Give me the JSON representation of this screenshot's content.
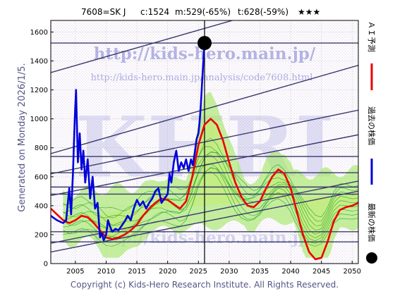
{
  "header": {
    "code": "7608=SK J",
    "c": "c:1524",
    "m": "m:529(-65%)",
    "t": "t:628(-59%)",
    "stars": "★★★"
  },
  "watermark": {
    "url1": "http://kids-hero.main.jp/",
    "url2": "http://kids-hero.main.jp/analysis/code7608.html",
    "big": "KHRI"
  },
  "generated": "Generated on Monday 2026/1/5.",
  "copyright": "Copyright (c) Kids-Hero Research Institute. All Rights Reserved.",
  "legend": {
    "ai": "ＡＩ予測",
    "past": "過去の株価",
    "latest": "最新の株価"
  },
  "colors": {
    "past": "#0000dd",
    "ai": "#ee0000",
    "band_fill": "#a6e86a",
    "band_line": "#2fa82f",
    "channel": "#3a3a6e",
    "yellow": "#fff3a6",
    "grid": "#b9b9b9"
  },
  "chart_data": {
    "type": "line",
    "xlim": [
      2001,
      2051
    ],
    "ylim": [
      0,
      1680
    ],
    "xticks": [
      "2005",
      "2010",
      "2015",
      "2020",
      "2025",
      "2030",
      "2035",
      "2040",
      "2045",
      "2050"
    ],
    "yticks": [
      "0",
      "200",
      "400",
      "600",
      "800",
      "1000",
      "1200",
      "1400",
      "1600"
    ],
    "current_point": {
      "x": 2026.0,
      "y": 1524
    },
    "hlines": [
      1524,
      740,
      628,
      529,
      480,
      220,
      150
    ],
    "vline_x": 2026.0,
    "channels": [
      {
        "x": [
          2001,
          2051
        ],
        "y": [
          1320,
          1930
        ]
      },
      {
        "x": [
          2001,
          2051
        ],
        "y": [
          760,
          1370
        ]
      },
      {
        "x": [
          2001,
          2051
        ],
        "y": [
          620,
          1060
        ]
      },
      {
        "x": [
          2001,
          2051
        ],
        "y": [
          470,
          890
        ]
      },
      {
        "x": [
          2001,
          2051
        ],
        "y": [
          140,
          570
        ]
      },
      {
        "x": [
          2001,
          2051
        ],
        "y": [
          80,
          500
        ]
      }
    ],
    "series": [
      {
        "name": "過去の株価",
        "x": [
          2001.0,
          2002.0,
          2003.0,
          2003.5,
          2004.0,
          2004.3,
          2004.6,
          2004.9,
          2005.1,
          2005.4,
          2005.7,
          2006.0,
          2006.3,
          2006.6,
          2007.0,
          2007.4,
          2007.8,
          2008.2,
          2008.6,
          2009.0,
          2009.3,
          2009.6,
          2010.0,
          2010.3,
          2010.6,
          2011.0,
          2011.5,
          2012.0,
          2012.5,
          2013.0,
          2013.5,
          2014.0,
          2014.5,
          2015.0,
          2015.5,
          2016.0,
          2016.5,
          2017.0,
          2017.5,
          2018.0,
          2018.5,
          2019.0,
          2019.5,
          2020.0,
          2020.3,
          2020.6,
          2021.0,
          2021.4,
          2021.8,
          2022.2,
          2022.6,
          2023.0,
          2023.4,
          2023.8,
          2024.1,
          2024.4,
          2024.7,
          2025.0,
          2025.2,
          2025.4,
          2025.6,
          2025.8,
          2026.0
        ],
        "y": [
          330,
          300,
          280,
          300,
          520,
          340,
          620,
          1000,
          1200,
          700,
          900,
          650,
          780,
          560,
          720,
          450,
          600,
          380,
          420,
          180,
          210,
          160,
          200,
          300,
          260,
          220,
          240,
          230,
          260,
          290,
          330,
          300,
          380,
          440,
          400,
          430,
          380,
          420,
          450,
          500,
          520,
          420,
          450,
          480,
          620,
          560,
          700,
          780,
          640,
          700,
          660,
          720,
          640,
          720,
          680,
          760,
          860,
          900,
          980,
          1100,
          1250,
          1400,
          1524
        ]
      },
      {
        "name": "ＡＩ予測",
        "x": [
          2001.0,
          2002.0,
          2003.0,
          2004.0,
          2005.0,
          2006.0,
          2007.0,
          2008.0,
          2009.0,
          2010.0,
          2011.0,
          2012.0,
          2013.0,
          2014.0,
          2015.0,
          2016.0,
          2017.0,
          2018.0,
          2019.0,
          2020.0,
          2021.0,
          2022.0,
          2023.0,
          2024.0,
          2025.0,
          2026.0,
          2027.0,
          2028.0,
          2029.0,
          2030.0,
          2031.0,
          2032.0,
          2033.0,
          2034.0,
          2035.0,
          2036.0,
          2037.0,
          2038.0,
          2039.0,
          2040.0,
          2041.0,
          2042.0,
          2043.0,
          2044.0,
          2045.0,
          2046.0,
          2047.0,
          2048.0,
          2049.0,
          2050.0,
          2051.0
        ],
        "y": [
          380,
          340,
          300,
          280,
          300,
          330,
          320,
          280,
          230,
          180,
          170,
          180,
          200,
          230,
          270,
          330,
          380,
          420,
          450,
          440,
          410,
          380,
          430,
          600,
          820,
          960,
          1000,
          960,
          850,
          700,
          560,
          460,
          400,
          390,
          430,
          520,
          600,
          650,
          620,
          520,
          360,
          200,
          80,
          30,
          40,
          150,
          290,
          370,
          390,
          400,
          420
        ]
      }
    ],
    "legend_placement": "right"
  }
}
